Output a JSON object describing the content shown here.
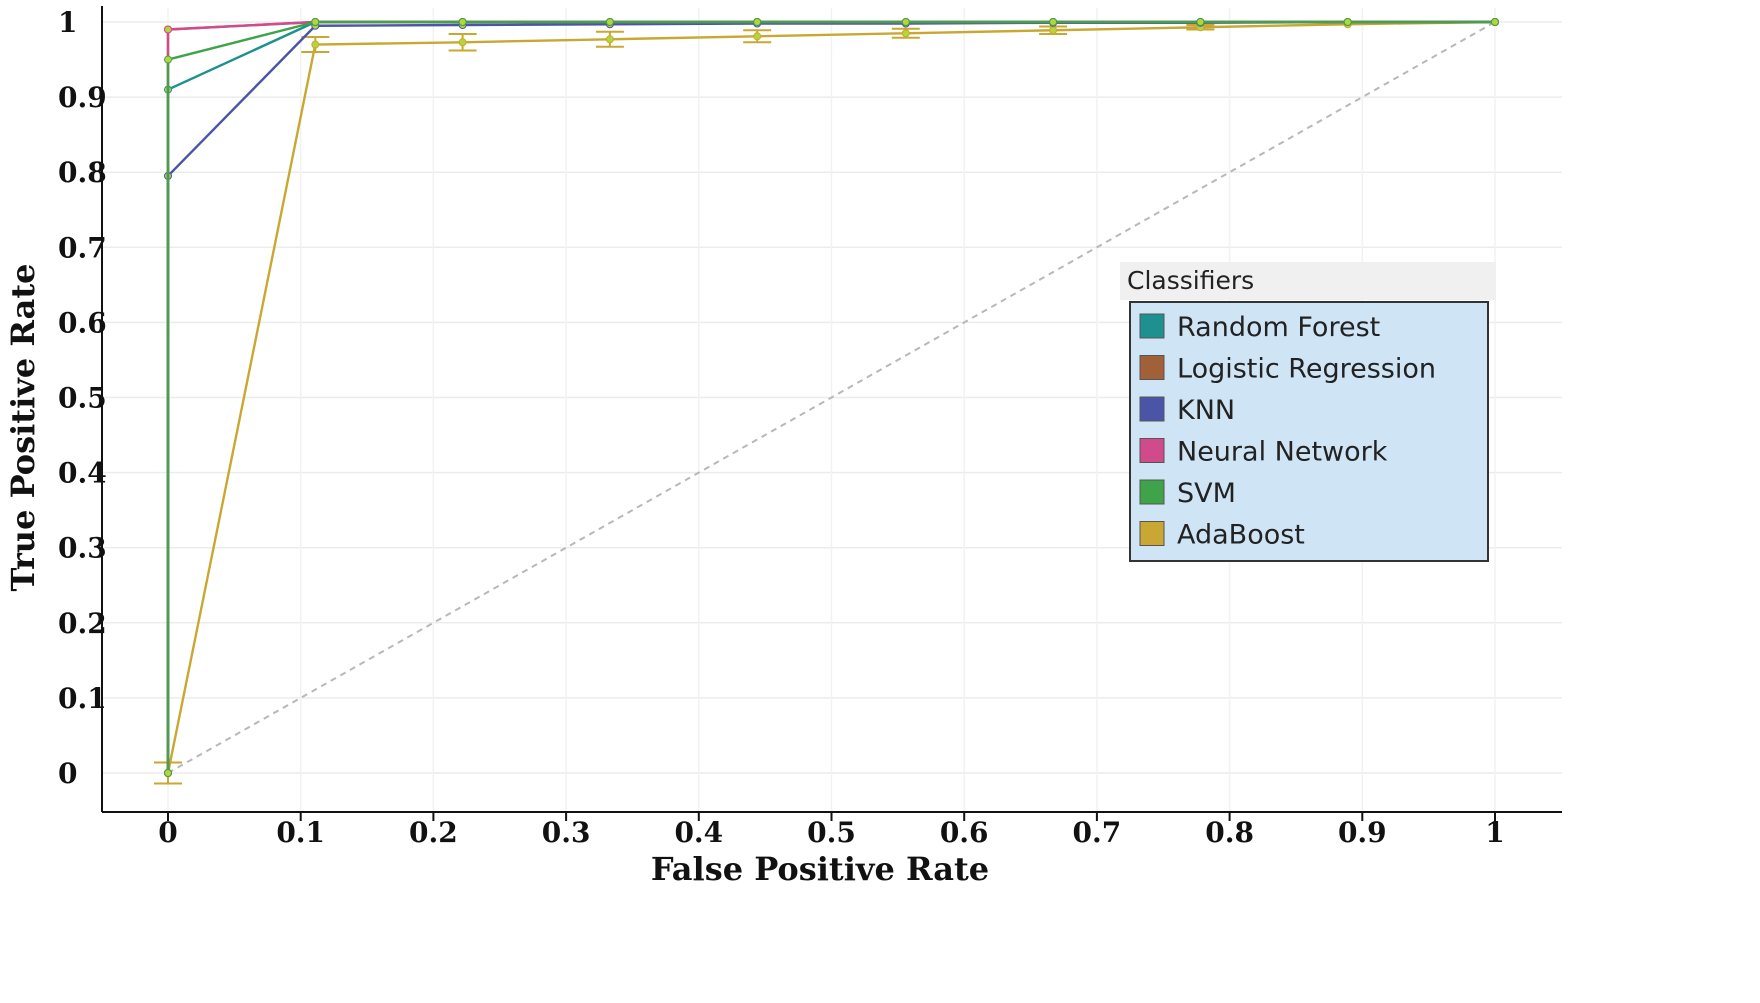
{
  "chart_data": {
    "type": "line",
    "title": "",
    "xlabel": "False Positive Rate",
    "ylabel": "True Positive Rate",
    "xlim": [
      0,
      1
    ],
    "ylim": [
      0,
      1
    ],
    "x_ticks": [
      "0",
      "0.1",
      "0.2",
      "0.3",
      "0.4",
      "0.5",
      "0.6",
      "0.7",
      "0.8",
      "0.9",
      "1"
    ],
    "y_ticks": [
      "0",
      "0.1",
      "0.2",
      "0.3",
      "0.4",
      "0.5",
      "0.6",
      "0.7",
      "0.8",
      "0.9",
      "1"
    ],
    "grid": true,
    "diagonal_reference": true,
    "legend": {
      "title": "Classifiers",
      "position": "center-right"
    },
    "series": [
      {
        "name": "Random Forest",
        "color": "#1e9090",
        "points": [
          [
            0,
            0
          ],
          [
            0,
            0.91
          ],
          [
            0.111,
            1
          ],
          [
            0.222,
            1
          ],
          [
            0.333,
            1
          ],
          [
            0.444,
            1
          ],
          [
            0.556,
            1
          ],
          [
            0.667,
            1
          ],
          [
            0.778,
            1
          ],
          [
            0.889,
            1
          ],
          [
            1,
            1
          ]
        ]
      },
      {
        "name": "Logistic Regression",
        "color": "#a0603a",
        "points": [
          [
            0,
            0
          ],
          [
            0,
            0.99
          ],
          [
            0.111,
            1
          ],
          [
            0.222,
            1
          ],
          [
            0.333,
            1
          ],
          [
            0.444,
            1
          ],
          [
            0.556,
            1
          ],
          [
            0.667,
            1
          ],
          [
            0.778,
            1
          ],
          [
            0.889,
            1
          ],
          [
            1,
            1
          ]
        ]
      },
      {
        "name": "KNN",
        "color": "#4a55a8",
        "points": [
          [
            0,
            0
          ],
          [
            0,
            0.795
          ],
          [
            0.111,
            0.995
          ],
          [
            0.222,
            0.996
          ],
          [
            0.333,
            0.997
          ],
          [
            0.444,
            0.998
          ],
          [
            0.556,
            0.998
          ],
          [
            0.667,
            0.999
          ],
          [
            0.778,
            0.999
          ],
          [
            0.889,
            1
          ],
          [
            1,
            1
          ]
        ]
      },
      {
        "name": "Neural Network",
        "color": "#d04a8c",
        "points": [
          [
            0,
            0
          ],
          [
            0,
            0.99
          ],
          [
            0.111,
            1
          ],
          [
            0.222,
            1
          ],
          [
            0.333,
            1
          ],
          [
            0.444,
            1
          ],
          [
            0.556,
            1
          ],
          [
            0.667,
            1
          ],
          [
            0.778,
            1
          ],
          [
            0.889,
            1
          ],
          [
            1,
            1
          ]
        ]
      },
      {
        "name": "SVM",
        "color": "#3fa34a",
        "points": [
          [
            0,
            0
          ],
          [
            0,
            0.95
          ],
          [
            0.111,
            1
          ],
          [
            0.222,
            1
          ],
          [
            0.333,
            1
          ],
          [
            0.444,
            1
          ],
          [
            0.556,
            1
          ],
          [
            0.667,
            1
          ],
          [
            0.778,
            1
          ],
          [
            0.889,
            1
          ],
          [
            1,
            1
          ]
        ]
      },
      {
        "name": "AdaBoost",
        "color": "#c8a832",
        "points": [
          [
            0,
            0
          ],
          [
            0.111,
            0.97
          ],
          [
            0.222,
            0.973
          ],
          [
            0.333,
            0.977
          ],
          [
            0.444,
            0.981
          ],
          [
            0.556,
            0.985
          ],
          [
            0.667,
            0.989
          ],
          [
            0.778,
            0.993
          ],
          [
            0.889,
            0.997
          ],
          [
            1,
            1
          ]
        ],
        "error": [
          0.014,
          0.01,
          0.011,
          0.01,
          0.008,
          0.006,
          0.005,
          0.003,
          0,
          0
        ]
      }
    ]
  }
}
